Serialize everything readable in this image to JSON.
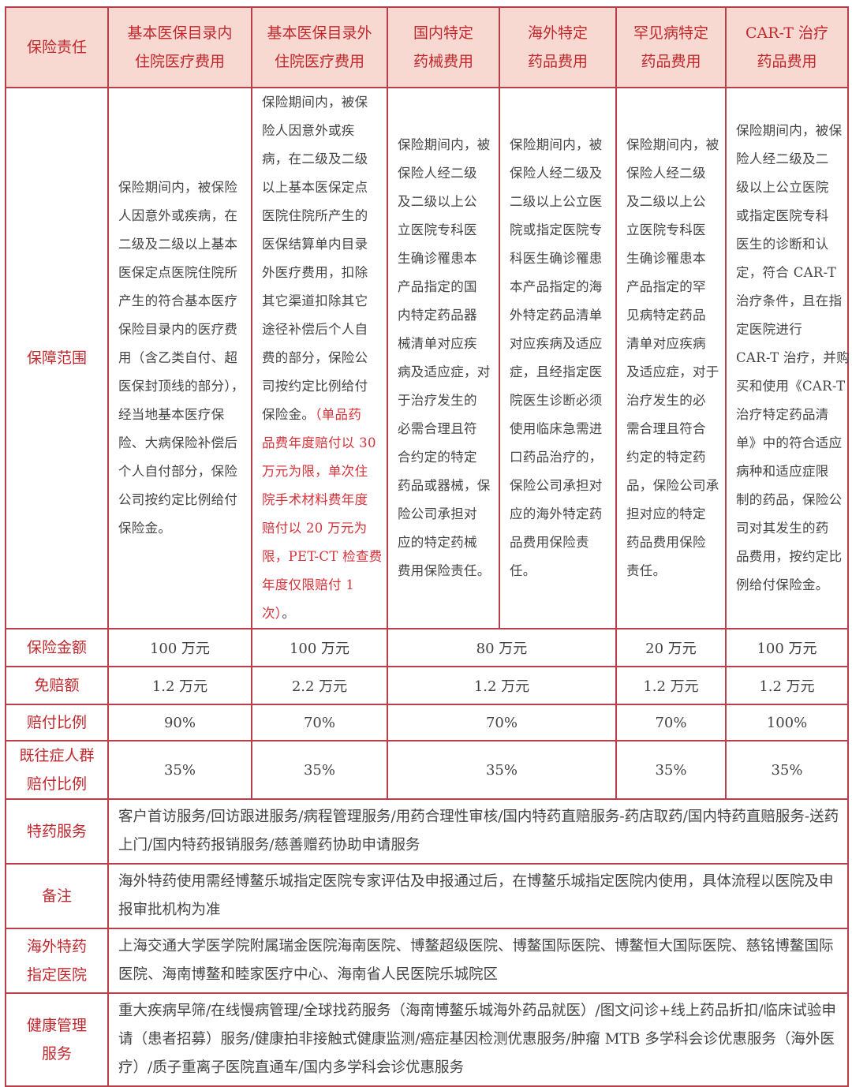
{
  "header": {
    "label": "保险责任",
    "columns": [
      [
        "基本医保目录内",
        "住院医疗费用"
      ],
      [
        "基本医保目录外",
        "住院医疗费用"
      ],
      [
        "国内特定",
        "药械费用"
      ],
      [
        "海外特定",
        "药品费用"
      ],
      [
        "罕见病特定",
        "药品费用"
      ],
      [
        "CAR-T 治疗",
        "药品费用"
      ]
    ]
  },
  "coverage": {
    "label": "保障范围",
    "cells": [
      {
        "lines": [
          "保险期间内，被保险",
          "人因意外或疾病，在",
          "二级及二级以上基本",
          "医保定点医院住院所",
          "产生的符合基本医疗",
          "保险目录内的医疗费",
          "用（含乙类自付、超",
          "医保封顶线的部分），",
          "经当地基本医疗保",
          "险、大病保险补偿后",
          "个人自付部分，保险",
          "公司按约定比例给付",
          "保险金。"
        ]
      },
      {
        "lines": [
          "保险期间内，被保",
          "险人因意外或疾",
          "病，在二级及二级",
          "以上基本医保定点",
          "医院住院所产生的",
          "医保结算单内目录",
          "外医疗费用，扣除",
          "其它渠道扣除其它",
          "途径补偿后个人自",
          "费的部分，保险公",
          "司按约定比例给付",
          "保险金。（单品药",
          "品费年度赔付以 30",
          "万元为限，单次住",
          "院手术材料费年度",
          "赔付以 20 万元为",
          "限，PET-CT 检查费",
          "年度仅限赔付 1",
          "次）。"
        ],
        "highlight": "（单品药品费年度赔付以 30万元为限，单次住院手术材料费年度赔付以 20 万元为限，PET-CT 检查费年度仅限赔付 1次）"
      },
      {
        "lines": [
          "保险期间内，被",
          "保险人经二级",
          "及二级以上公",
          "立医院专科医",
          "生确诊罹患本",
          "产品指定的国",
          "内特定药品器",
          "械清单对应疾",
          "病及适应症，对",
          "于治疗发生的",
          "必需合理且符",
          "合约定的特定",
          "药品或器械，保",
          "险公司承担对",
          "应的特定药械",
          "费用保险责任。"
        ]
      },
      {
        "lines": [
          "保险期间内，被",
          "保险人经二级及",
          "二级以上公立医",
          "院或指定医院专",
          "科医生确诊罹患",
          "本产品指定的海",
          "外特定药品清单",
          "对应疾病及适应",
          "症，且经指定医",
          "院医生诊断必须",
          "使用临床急需进",
          "口药品治疗的，",
          "保险公司承担对",
          "应的海外特定药",
          "品费用保险责",
          "任。"
        ]
      },
      {
        "lines": [
          "保险期间内，被",
          "保险人经二级",
          "及二级以上公",
          "立医院专科医",
          "生确诊罹患本",
          "产品指定的罕",
          "见病特定药品",
          "清单对应疾病",
          "及适应症，对于",
          "治疗发生的必",
          "需合理且符合",
          "约定的特定药",
          "品，保险公司承",
          "担对应的特定",
          "药品费用保险",
          "责任。"
        ]
      },
      {
        "lines": [
          "保险期间内，被保",
          "险人经二级及二",
          "级以上公立医院",
          "或指定医院专科",
          "医生的诊断和认",
          "定，符合 CAR-T",
          "治疗条件，且在指",
          "定医院进行",
          "CAR-T 治疗，并购",
          "买和使用《CAR-T",
          "治疗特定药品清",
          "单》中的符合适应",
          "病种和适应症限",
          "制的药品，保险公",
          "司对其发生的药",
          "品费用，按约定比",
          "例给付保险金。"
        ]
      }
    ]
  },
  "sum_insured": {
    "label": "保险金额",
    "values": [
      "100 万元",
      "100 万元",
      "80 万元",
      "20 万元",
      "100 万元"
    ]
  },
  "deductible": {
    "label": "免赔额",
    "values": [
      "1.2 万元",
      "2.2 万元",
      "1.2 万元",
      "1.2 万元",
      "1.2 万元"
    ]
  },
  "payout_ratio": {
    "label": "赔付比例",
    "values": [
      "90%",
      "70%",
      "70%",
      "70%",
      "100%"
    ]
  },
  "preexisting": {
    "label": [
      "既往症人群",
      "赔付比例"
    ],
    "values": [
      "35%",
      "35%",
      "35%",
      "35%",
      "35%"
    ]
  },
  "special_drug_service": {
    "label": "特药服务",
    "text": "客户首访服务/回访跟进服务/病程管理服务/用药合理性审核/国内特药直赔服务-药店取药/国内特药直赔服务-送药上门/国内特药报销服务/慈善赠药协助申请服务"
  },
  "notes": {
    "label": "备注",
    "text": "海外特药使用需经博鳌乐城指定医院专家评估及申报通过后，在博鳌乐城指定医院内使用，具体流程以医院及申报审批机构为准"
  },
  "overseas_hospitals": {
    "label": [
      "海外特药",
      "指定医院"
    ],
    "text": "上海交通大学医学院附属瑞金医院海南医院、博鳌超级医院、博鳌国际医院、博鳌恒大国际医院、慈铭博鳌国际医院、海南博鳌和睦家医疗中心、海南省人民医院乐城院区"
  },
  "health_management": {
    "label": [
      "健康管理",
      "服务"
    ],
    "text": "重大疾病早筛/在线慢病管理/全球找药服务（海南博鳌乐城海外药品就医）/图文问诊+线上药品折扣/临床试验申请（患者招募）服务/健康拍非接触式健康监测/癌症基因检测优惠服务/肿瘤 MTB 多学科会诊优惠服务（海外医疗）/质子重离子医院直通车/国内多学科会诊优惠服务"
  },
  "colors": {
    "border": "#b8404a",
    "header_bg": "#f8d9d1",
    "accent_text": "#c0282e",
    "highlight_text": "#d6323a",
    "body_text": "#444444"
  }
}
